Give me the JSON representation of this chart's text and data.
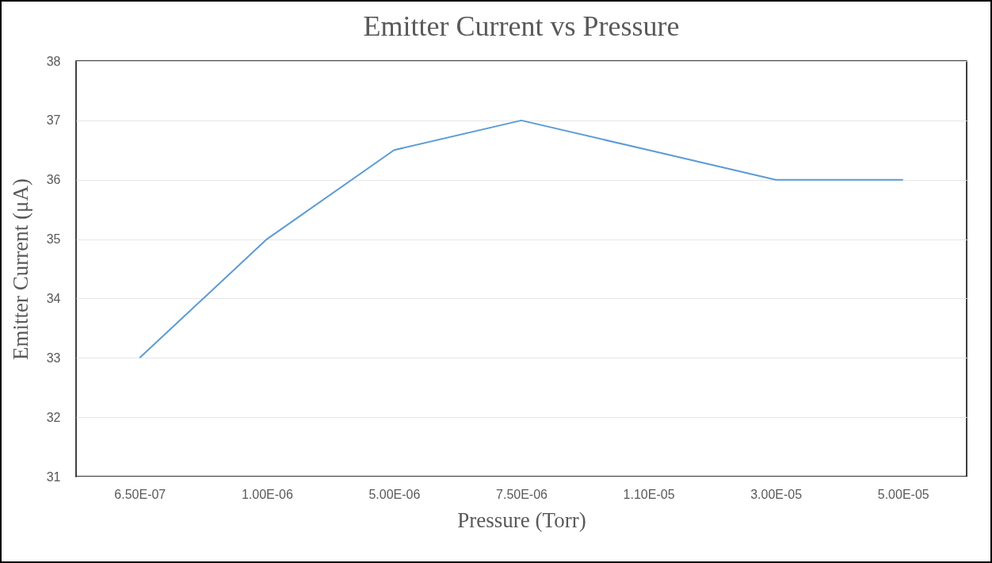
{
  "chart_data": {
    "type": "line",
    "title": "Emitter Current vs Pressure",
    "xlabel": "Pressure (Torr)",
    "ylabel": "Emitter Current (μA)",
    "categories": [
      "6.50E-07",
      "1.00E-06",
      "5.00E-06",
      "7.50E-06",
      "1.10E-05",
      "3.00E-05",
      "5.00E-05"
    ],
    "series": [
      {
        "color": "#5b9bd5",
        "values": [
          33,
          35,
          36.5,
          37,
          36.5,
          36,
          36
        ]
      }
    ],
    "ylim": [
      31,
      38
    ],
    "yticks": [
      31,
      32,
      33,
      34,
      35,
      36,
      37,
      38
    ],
    "grid": "y"
  }
}
